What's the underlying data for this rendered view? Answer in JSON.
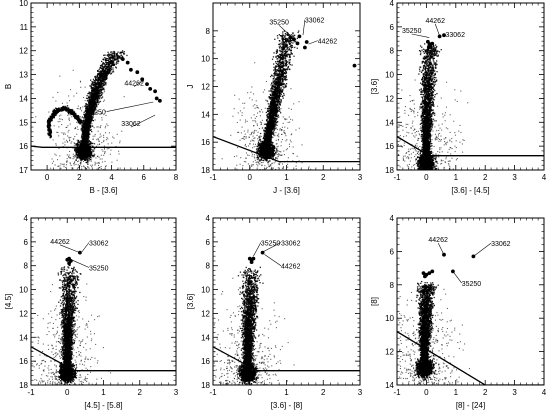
{
  "chart_data": [
    {
      "type": "scatter",
      "xlabel": "B - [3.6]",
      "ylabel": "B",
      "xlim": [
        -1,
        8
      ],
      "ylim": [
        17,
        10
      ],
      "y_inverted": true,
      "xticks": [
        0,
        2,
        4,
        6,
        8
      ],
      "yticks": [
        10,
        11,
        12,
        13,
        14,
        15,
        16,
        17
      ],
      "field_locus": [
        [
          2.3,
          16.2
        ],
        [
          2.4,
          15.4
        ],
        [
          2.6,
          14.7
        ],
        [
          2.9,
          14.0
        ],
        [
          3.2,
          13.4
        ],
        [
          3.6,
          12.8
        ],
        [
          4.1,
          12.3
        ],
        [
          4.5,
          12.0
        ]
      ],
      "secondary_locus": [
        [
          0.2,
          15.6
        ],
        [
          0.1,
          15.0
        ],
        [
          0.5,
          14.55
        ],
        [
          1.1,
          14.4
        ],
        [
          1.6,
          14.6
        ],
        [
          2.1,
          15.0
        ]
      ],
      "limit_line": [
        [
          -1,
          16.0
        ],
        [
          -0.3,
          16.05
        ],
        [
          8,
          16.05
        ]
      ],
      "highlighted_points": [
        [
          4.7,
          12.35
        ],
        [
          5.0,
          12.5
        ],
        [
          5.2,
          12.8
        ],
        [
          5.6,
          12.9
        ],
        [
          5.9,
          13.2
        ],
        [
          6.2,
          13.4
        ],
        [
          6.4,
          13.6
        ],
        [
          6.7,
          13.7
        ],
        [
          6.8,
          14.0
        ],
        [
          7.0,
          14.1
        ]
      ],
      "labels": [
        {
          "text": "44262",
          "x": 5.4,
          "y": 13.5,
          "tx": 6.0,
          "ty": 13.25
        },
        {
          "text": "35250",
          "x": 3.7,
          "y": 14.55,
          "tx": 6.6,
          "ty": 14.15
        },
        {
          "text": "33062",
          "x": 5.2,
          "y": 15.2,
          "tx": 6.7,
          "ty": 14.7
        }
      ]
    },
    {
      "type": "scatter",
      "xlabel": "J - [3.6]",
      "ylabel": "J",
      "xlim": [
        -1,
        3
      ],
      "ylim": [
        18,
        6
      ],
      "y_inverted": true,
      "xticks": [
        -1,
        0,
        1,
        2,
        3
      ],
      "yticks": [
        8,
        10,
        12,
        14,
        16,
        18
      ],
      "field_locus": [
        [
          0.45,
          16.6
        ],
        [
          0.5,
          15.6
        ],
        [
          0.6,
          14.5
        ],
        [
          0.7,
          13.0
        ],
        [
          0.8,
          11.5
        ],
        [
          0.9,
          10.0
        ],
        [
          1.0,
          8.8
        ],
        [
          1.1,
          7.9
        ]
      ],
      "limit_line": [
        [
          -1,
          15.6
        ],
        [
          0.8,
          17.4
        ],
        [
          3,
          17.4
        ]
      ],
      "highlighted_points": [
        [
          1.1,
          8.5
        ],
        [
          1.2,
          8.6
        ],
        [
          1.35,
          8.4
        ],
        [
          1.3,
          8.9
        ],
        [
          1.55,
          8.8
        ],
        [
          1.5,
          9.2
        ],
        [
          2.85,
          10.5
        ]
      ],
      "labels": [
        {
          "text": "35250",
          "x": 0.8,
          "y": 7.6,
          "tx": 1.15,
          "ty": 8.45
        },
        {
          "text": "33062",
          "x": 1.5,
          "y": 7.2,
          "tx": 1.45,
          "ty": 8.3
        },
        {
          "text": "44262",
          "x": 1.85,
          "y": 8.7,
          "tx": 1.6,
          "ty": 8.95
        }
      ]
    },
    {
      "type": "scatter",
      "xlabel": "[3.6] - [4.5]",
      "ylabel": "[3.6]",
      "xlim": [
        -1,
        4
      ],
      "ylim": [
        18,
        4
      ],
      "y_inverted": true,
      "xticks": [
        -1,
        0,
        1,
        2,
        3,
        4
      ],
      "yticks": [
        4,
        6,
        8,
        10,
        12,
        14,
        16,
        18
      ],
      "field_locus": [
        [
          0.0,
          17.4
        ],
        [
          0.0,
          16.0
        ],
        [
          0.02,
          14.0
        ],
        [
          0.05,
          12.0
        ],
        [
          0.08,
          10.0
        ],
        [
          0.12,
          8.3
        ],
        [
          0.15,
          7.4
        ]
      ],
      "limit_line": [
        [
          -1,
          15.2
        ],
        [
          0.1,
          16.8
        ],
        [
          4,
          16.8
        ]
      ],
      "highlighted_points": [
        [
          0.05,
          7.25
        ],
        [
          0.12,
          7.45
        ],
        [
          0.2,
          7.4
        ],
        [
          0.08,
          7.7
        ],
        [
          0.15,
          7.7
        ],
        [
          0.45,
          6.8
        ],
        [
          0.6,
          6.7
        ]
      ],
      "labels": [
        {
          "text": "44262",
          "x": 0.3,
          "y": 5.75,
          "tx": 0.45,
          "ty": 6.75
        },
        {
          "text": "35250",
          "x": -0.5,
          "y": 6.6,
          "tx": 0.1,
          "ty": 6.9
        },
        {
          "text": "33062",
          "x": 0.65,
          "y": 6.6,
          "tx": 0.6,
          "ty": 6.7
        }
      ]
    },
    {
      "type": "scatter",
      "xlabel": "[4.5] - [5.8]",
      "ylabel": "[4.5]",
      "xlim": [
        -1,
        3
      ],
      "ylim": [
        18,
        4
      ],
      "y_inverted": true,
      "xticks": [
        -1,
        0,
        1,
        2,
        3
      ],
      "yticks": [
        4,
        6,
        8,
        10,
        12,
        14,
        16,
        18
      ],
      "field_locus": [
        [
          0.0,
          17.0
        ],
        [
          0.0,
          15.5
        ],
        [
          0.02,
          13.5
        ],
        [
          0.04,
          11.5
        ],
        [
          0.05,
          9.5
        ],
        [
          0.06,
          8.0
        ]
      ],
      "limit_line": [
        [
          -1,
          14.8
        ],
        [
          0.2,
          16.8
        ],
        [
          3,
          16.8
        ]
      ],
      "highlighted_points": [
        [
          0.0,
          7.5
        ],
        [
          0.05,
          7.4
        ],
        [
          0.1,
          7.6
        ],
        [
          0.05,
          7.8
        ],
        [
          0.35,
          6.9
        ]
      ],
      "labels": [
        {
          "text": "44262",
          "x": -0.2,
          "y": 6.25,
          "tx": 0.3,
          "ty": 6.85
        },
        {
          "text": "33062",
          "x": 0.6,
          "y": 6.05,
          "tx": 0.4,
          "ty": 6.85
        },
        {
          "text": "35250",
          "x": 0.6,
          "y": 8.15,
          "tx": 0.15,
          "ty": 7.55
        }
      ]
    },
    {
      "type": "scatter",
      "xlabel": "[3.6] - [8]",
      "ylabel": "[3.6]",
      "xlim": [
        -1,
        3
      ],
      "ylim": [
        18,
        4
      ],
      "y_inverted": true,
      "xticks": [
        -1,
        0,
        1,
        2,
        3
      ],
      "yticks": [
        4,
        6,
        8,
        10,
        12,
        14,
        16,
        18
      ],
      "field_locus": [
        [
          -0.05,
          17.0
        ],
        [
          -0.05,
          15.5
        ],
        [
          -0.03,
          13.5
        ],
        [
          0.0,
          11.5
        ],
        [
          0.02,
          9.5
        ],
        [
          0.05,
          8.0
        ]
      ],
      "limit_line": [
        [
          -1,
          14.8
        ],
        [
          0.2,
          16.8
        ],
        [
          3,
          16.8
        ]
      ],
      "highlighted_points": [
        [
          0.0,
          7.4
        ],
        [
          0.05,
          7.5
        ],
        [
          0.1,
          7.4
        ],
        [
          0.05,
          7.7
        ],
        [
          0.35,
          6.9
        ]
      ],
      "labels": [
        {
          "text": "35250",
          "x": 0.3,
          "y": 6.05,
          "tx": 0.1,
          "ty": 7.2
        },
        {
          "text": "33062",
          "x": 0.85,
          "y": 6.05,
          "tx": 0.35,
          "ty": 6.85
        },
        {
          "text": "44262",
          "x": 0.85,
          "y": 8.0,
          "tx": 0.4,
          "ty": 7.05
        }
      ]
    },
    {
      "type": "scatter",
      "xlabel": "[8] - [24]",
      "ylabel": "[8]",
      "xlim": [
        -1,
        4
      ],
      "ylim": [
        14,
        4
      ],
      "y_inverted": true,
      "xticks": [
        -1,
        0,
        1,
        2,
        3,
        4
      ],
      "yticks": [
        4,
        6,
        8,
        10,
        12,
        14
      ],
      "field_locus": [
        [
          -0.05,
          13.0
        ],
        [
          -0.05,
          11.5
        ],
        [
          -0.02,
          10.0
        ],
        [
          0.0,
          8.5
        ],
        [
          0.05,
          7.8
        ]
      ],
      "limit_line": [
        [
          -1,
          10.8
        ],
        [
          2.0,
          14
        ],
        [
          4,
          14
        ]
      ],
      "highlighted_points": [
        [
          -0.1,
          7.3
        ],
        [
          0.0,
          7.4
        ],
        [
          0.1,
          7.3
        ],
        [
          0.2,
          7.2
        ],
        [
          -0.05,
          7.5
        ],
        [
          0.6,
          6.2
        ],
        [
          1.6,
          6.3
        ],
        [
          0.9,
          7.2
        ]
      ],
      "labels": [
        {
          "text": "44262",
          "x": 0.4,
          "y": 5.5,
          "tx": 0.6,
          "ty": 6.2
        },
        {
          "text": "33062",
          "x": 2.2,
          "y": 5.5,
          "tx": 1.6,
          "ty": 6.3
        },
        {
          "text": "35250",
          "x": 1.2,
          "y": 7.9,
          "tx": 0.9,
          "ty": 7.2
        }
      ]
    }
  ]
}
